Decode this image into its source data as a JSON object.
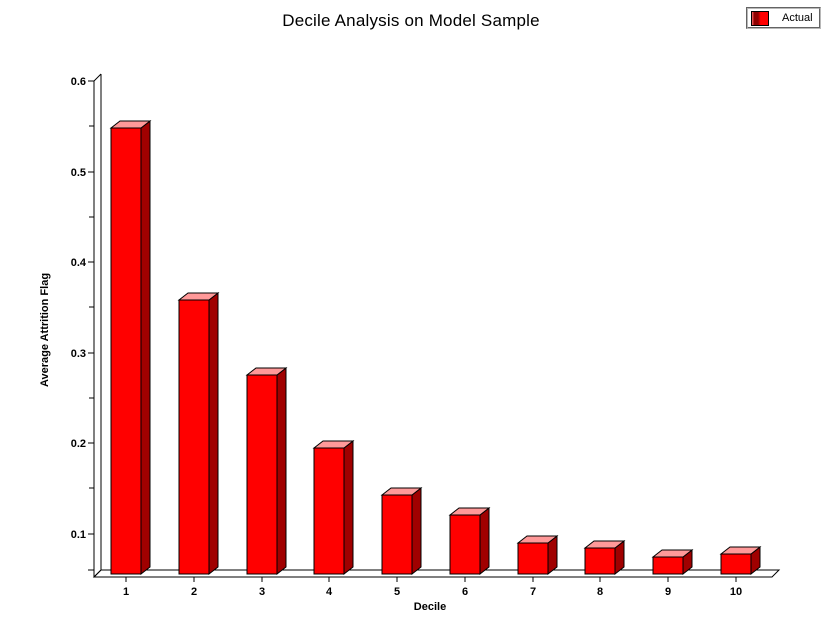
{
  "chart_data": {
    "type": "bar",
    "style": "3d",
    "title": "Decile Analysis on Model Sample",
    "xlabel": "Decile",
    "ylabel": "Average Attrition Flag",
    "categories": [
      "1",
      "2",
      "3",
      "4",
      "5",
      "6",
      "7",
      "8",
      "9",
      "10"
    ],
    "series": [
      {
        "name": "Actual",
        "values": [
          0.548,
          0.358,
          0.275,
          0.194,
          0.143,
          0.12,
          0.09,
          0.084,
          0.074,
          0.077
        ]
      }
    ],
    "ylim": [
      0.05,
      0.6
    ],
    "yticks": {
      "major": [
        0.6,
        0.5,
        0.4,
        0.3,
        0.2,
        0.1
      ],
      "major_labels": [
        "0.6",
        "0.5",
        "0.4",
        "0.3",
        "0.2",
        "0.1"
      ],
      "minor": [
        0.55,
        0.45,
        0.35,
        0.25,
        0.15
      ]
    },
    "grid": false,
    "legend": {
      "position": "top-right",
      "entries": [
        {
          "label": "Actual",
          "color": "#FF0000"
        }
      ]
    },
    "colors": {
      "bar_front": "#FF0000",
      "bar_side": "#A00000",
      "bar_top": "#FF9999",
      "outline": "#000000",
      "background": "#FFFFFF"
    }
  }
}
